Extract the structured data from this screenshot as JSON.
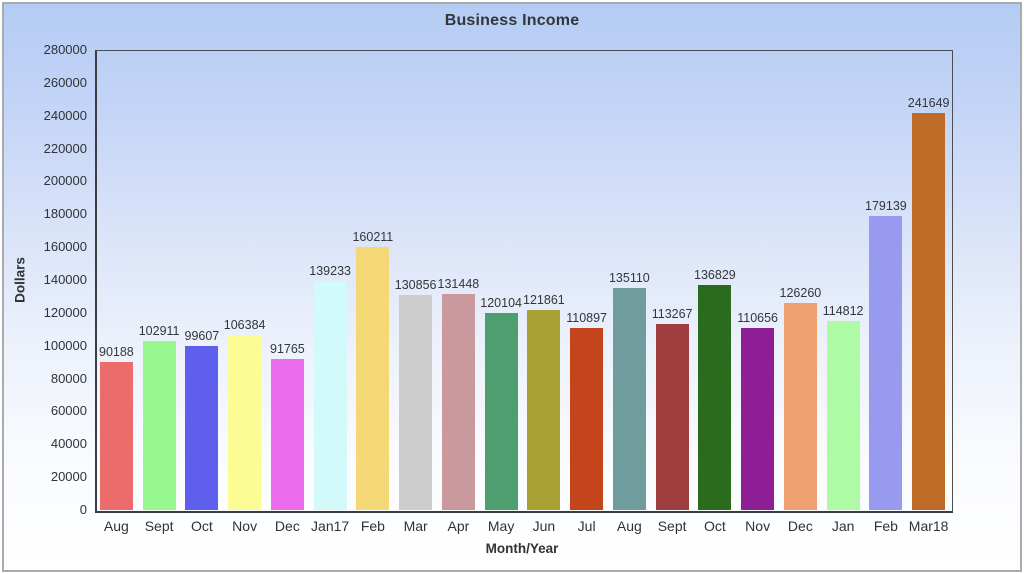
{
  "chart": {
    "title": "Business Income",
    "xlabel": "Month/Year",
    "ylabel": "Dollars"
  },
  "chart_data": {
    "type": "bar",
    "title": "Business Income",
    "xlabel": "Month/Year",
    "ylabel": "Dollars",
    "ylim": [
      0,
      280000
    ],
    "ytick_step": 20000,
    "grid": false,
    "legend": false,
    "value_labels_shown": true,
    "categories": [
      "Aug",
      "Sept",
      "Oct",
      "Nov",
      "Dec",
      "Jan17",
      "Feb",
      "Mar",
      "Apr",
      "May",
      "Jun",
      "Jul",
      "Aug",
      "Sept",
      "Oct",
      "Nov",
      "Dec",
      "Jan",
      "Feb",
      "Mar18"
    ],
    "values": [
      90188,
      102911,
      99607,
      106384,
      91765,
      139233,
      160211,
      130856,
      131448,
      120104,
      121861,
      110897,
      135110,
      113267,
      136829,
      110656,
      126260,
      114812,
      179139,
      241649
    ],
    "bar_colors": [
      "#ec6b6b",
      "#96f78e",
      "#5f5fee",
      "#fcfc95",
      "#ec6cee",
      "#d2fafa",
      "#f5d876",
      "#cdcdcd",
      "#c9999e",
      "#4f9e6f",
      "#a8a032",
      "#c4441c",
      "#6f9c9c",
      "#9e3e3e",
      "#2a6b1e",
      "#8e1e96",
      "#f0a070",
      "#affaa5",
      "#989af0",
      "#be6b28"
    ],
    "background_gradient": [
      "#b4ccf4",
      "#ffffff"
    ],
    "axis_color": "#3a3d42",
    "text_color": "#2f3237"
  }
}
